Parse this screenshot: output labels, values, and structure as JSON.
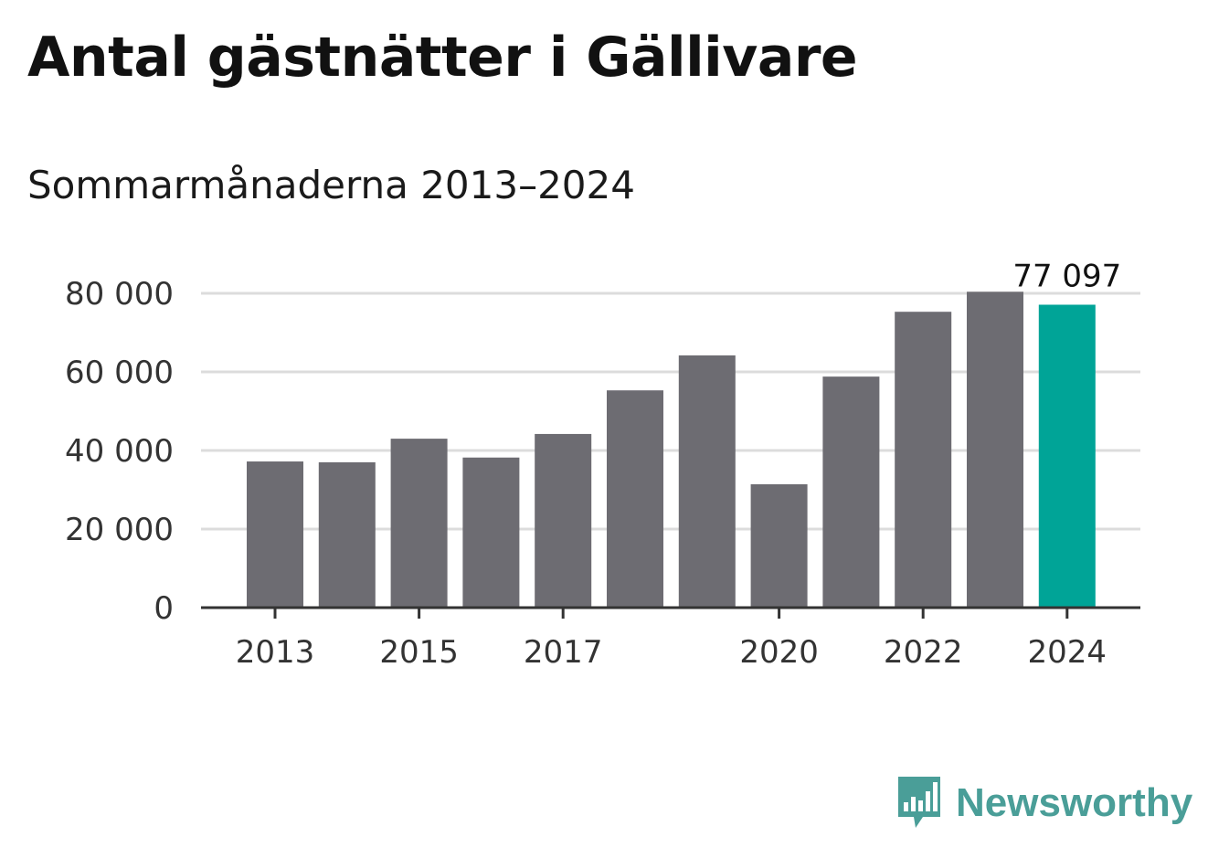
{
  "header": {
    "title": "Antal gästnätter i Gällivare",
    "subtitle": "Sommarmånaderna 2013–2024"
  },
  "brand": {
    "name": "Newsworthy",
    "logo_icon": "newsworthy-bar-chart-bubble-icon",
    "color": "#4a9e98"
  },
  "colors": {
    "bar": "#6d6c72",
    "highlight": "#00a497",
    "grid": "#dcdcdc",
    "axis": "#333333"
  },
  "chart_data": {
    "type": "bar",
    "categories": [
      "2013",
      "2014",
      "2015",
      "2016",
      "2017",
      "2018",
      "2019",
      "2020",
      "2021",
      "2022",
      "2023",
      "2024"
    ],
    "values": [
      37200,
      37000,
      43000,
      38200,
      44200,
      55300,
      64200,
      31400,
      58800,
      75300,
      80400,
      77097
    ],
    "highlight_index": 11,
    "data_labels": [
      {
        "index": 11,
        "text": "77 097"
      }
    ],
    "ylim": [
      0,
      80000
    ],
    "yticks": [
      0,
      20000,
      40000,
      60000,
      80000
    ],
    "ytick_labels": [
      "0",
      "20 000",
      "40 000",
      "60 000",
      "80 000"
    ],
    "xtick_labels": [
      {
        "category": "2013",
        "label": "2013"
      },
      {
        "category": "2015",
        "label": "2015"
      },
      {
        "category": "2017",
        "label": "2017"
      },
      {
        "category": "2020",
        "label": "2020"
      },
      {
        "category": "2022",
        "label": "2022"
      },
      {
        "category": "2024",
        "label": "2024"
      }
    ],
    "grid": true,
    "legend": false
  }
}
